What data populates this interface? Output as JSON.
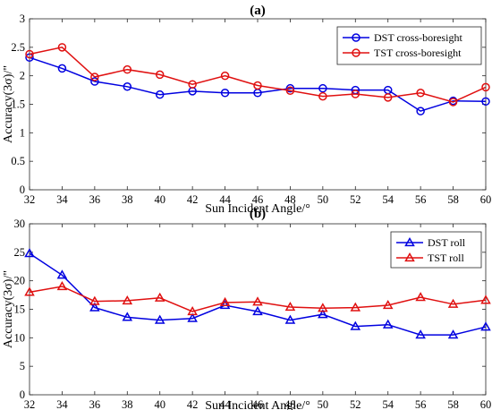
{
  "chart_data": [
    {
      "type": "line",
      "title": "(a)",
      "xlabel": "Sun Incident Angle/°",
      "ylabel": "Accuracy(3σ)/\"",
      "x": [
        32,
        34,
        36,
        38,
        40,
        42,
        44,
        46,
        48,
        50,
        52,
        54,
        56,
        58,
        60
      ],
      "xlim": [
        32,
        60
      ],
      "xticks": [
        32,
        34,
        36,
        38,
        40,
        42,
        44,
        46,
        48,
        50,
        52,
        54,
        56,
        58,
        60
      ],
      "ylim": [
        0,
        3
      ],
      "yticks": [
        0,
        0.5,
        1,
        1.5,
        2,
        2.5,
        3
      ],
      "grid": false,
      "legend_position": "top-right",
      "marker": "circle",
      "series": [
        {
          "name": "DST cross-boresight",
          "color": "#0000e0",
          "values": [
            2.32,
            2.13,
            1.9,
            1.81,
            1.67,
            1.73,
            1.7,
            1.7,
            1.78,
            1.78,
            1.75,
            1.75,
            1.38,
            1.56,
            1.55
          ]
        },
        {
          "name": "TST cross-boresight",
          "color": "#e01010",
          "values": [
            2.38,
            2.5,
            1.98,
            2.11,
            2.02,
            1.85,
            2.0,
            1.83,
            1.74,
            1.64,
            1.68,
            1.62,
            1.7,
            1.54,
            1.8
          ]
        }
      ]
    },
    {
      "type": "line",
      "title": "(b)",
      "xlabel": "Sun Incident Angle/°",
      "ylabel": "Accuracy(3σ)/\"",
      "x": [
        32,
        34,
        36,
        38,
        40,
        42,
        44,
        46,
        48,
        50,
        52,
        54,
        56,
        58,
        60
      ],
      "xlim": [
        32,
        60
      ],
      "xticks": [
        32,
        34,
        36,
        38,
        40,
        42,
        44,
        46,
        48,
        50,
        52,
        54,
        56,
        58,
        60
      ],
      "ylim": [
        0,
        30
      ],
      "yticks": [
        0,
        5,
        10,
        15,
        20,
        25,
        30
      ],
      "grid": false,
      "legend_position": "top-right",
      "marker": "triangle",
      "series": [
        {
          "name": "DST roll",
          "color": "#0000e0",
          "values": [
            24.8,
            21.0,
            15.3,
            13.6,
            13.1,
            13.4,
            15.7,
            14.6,
            13.1,
            14.1,
            12.0,
            12.3,
            10.5,
            10.5,
            11.9
          ]
        },
        {
          "name": "TST roll",
          "color": "#e01010",
          "values": [
            18.0,
            19.0,
            16.4,
            16.5,
            17.0,
            14.6,
            16.2,
            16.3,
            15.4,
            15.2,
            15.3,
            15.7,
            17.1,
            15.9,
            16.6
          ]
        }
      ]
    }
  ]
}
